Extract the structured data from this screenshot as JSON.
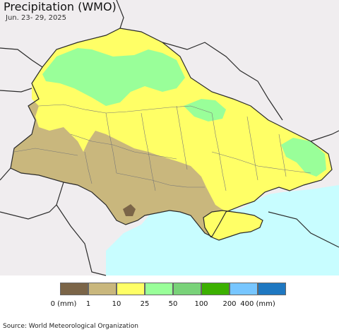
{
  "title": "Precipitation (WMO)",
  "subtitle": "Jun. 23- 29, 2025",
  "source": "Source: World Meteorological Organization",
  "colors": {
    "sea": "#c8fdff",
    "neighbor_land": "#f0edef",
    "border": "#2a2a2a",
    "oblast_border": "#777777"
  },
  "legend": {
    "bins": [
      {
        "color": "#7b6548"
      },
      {
        "color": "#c9b77d"
      },
      {
        "color": "#ffff66"
      },
      {
        "color": "#99ff99"
      },
      {
        "color": "#79d279"
      },
      {
        "color": "#3cb000"
      },
      {
        "color": "#77c6ff"
      },
      {
        "color": "#1f78c1"
      }
    ],
    "labels": [
      "0 (mm)",
      "1",
      "10",
      "25",
      "50",
      "100",
      "200",
      "400 (mm)"
    ]
  }
}
